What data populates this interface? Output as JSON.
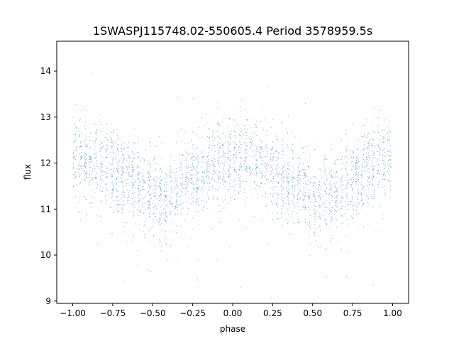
{
  "chart_data": {
    "type": "scatter",
    "title": "1SWASPJ115748.02-550605.4 Period 3578959.5s",
    "xlabel": "phase",
    "ylabel": "flux",
    "xlim": [
      -1.1,
      1.1
    ],
    "ylim": [
      8.95,
      14.65
    ],
    "x_ticks": [
      -1.0,
      -0.75,
      -0.5,
      -0.25,
      0.0,
      0.25,
      0.5,
      0.75,
      1.0
    ],
    "x_tick_labels": [
      "−1.00",
      "−0.75",
      "−0.50",
      "−0.25",
      "0.00",
      "0.25",
      "0.50",
      "0.75",
      "1.00"
    ],
    "y_ticks": [
      9,
      10,
      11,
      12,
      13,
      14
    ],
    "y_tick_labels": [
      "9",
      "10",
      "11",
      "12",
      "13",
      "14"
    ],
    "grid": false,
    "legend": "none",
    "point_color": "#1f77b4",
    "series": [
      {
        "phase_range": [
          -1.0,
          1.0
        ],
        "mean_flux_profile": [
          {
            "phase": 0.0,
            "flux": 12.1
          },
          {
            "phase": 0.1,
            "flux": 12.05
          },
          {
            "phase": 0.2,
            "flux": 11.95
          },
          {
            "phase": 0.3,
            "flux": 11.7
          },
          {
            "phase": 0.4,
            "flux": 11.6
          },
          {
            "phase": 0.45,
            "flux": 11.35
          },
          {
            "phase": 0.55,
            "flux": 11.2
          },
          {
            "phase": 0.6,
            "flux": 11.25
          },
          {
            "phase": 0.7,
            "flux": 11.55
          },
          {
            "phase": 0.8,
            "flux": 11.75
          },
          {
            "phase": 0.9,
            "flux": 12.1
          },
          {
            "phase": 1.0,
            "flux": 12.05
          }
        ],
        "scatter_sigma": 0.45
      }
    ]
  }
}
